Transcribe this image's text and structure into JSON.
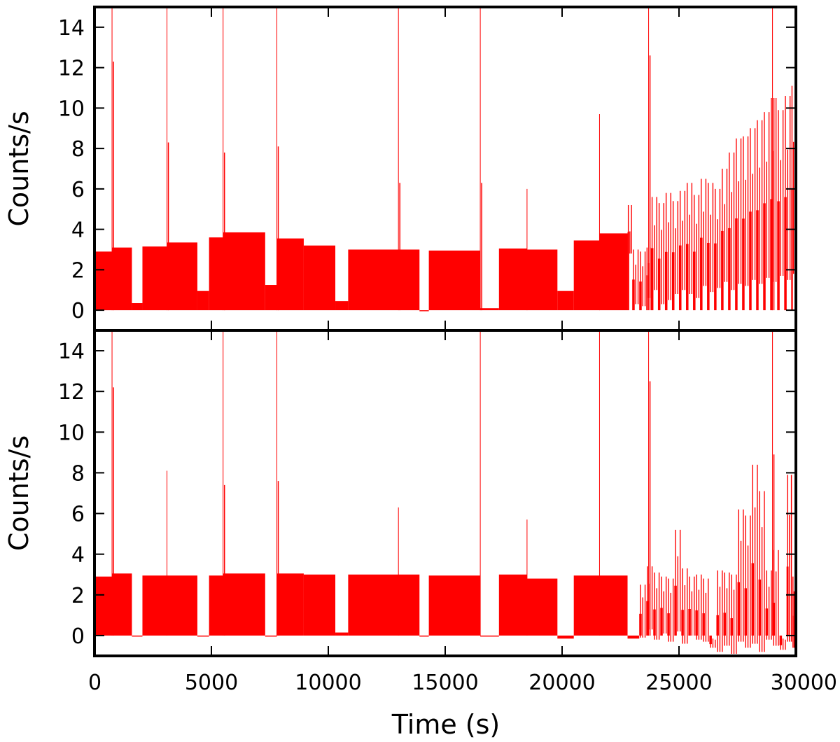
{
  "chart_data": [
    {
      "type": "bar",
      "panel": "top",
      "ylabel": "Counts/s",
      "xlabel": "",
      "xlim": [
        0,
        30000
      ],
      "ylim": [
        -1,
        15
      ],
      "yticks": [
        0,
        2,
        4,
        6,
        8,
        10,
        12,
        14
      ],
      "xticks": [
        0,
        5000,
        10000,
        15000,
        20000,
        25000,
        30000
      ],
      "color": "#ff0000",
      "segments": [
        [
          0,
          750,
          2.9
        ],
        [
          750,
          1600,
          3.1
        ],
        [
          1600,
          2050,
          0.35
        ],
        [
          2050,
          3100,
          3.15
        ],
        [
          3100,
          4400,
          3.35
        ],
        [
          4400,
          4900,
          0.95
        ],
        [
          4900,
          5500,
          3.6
        ],
        [
          5500,
          7300,
          3.85
        ],
        [
          7300,
          7800,
          1.25
        ],
        [
          7800,
          8950,
          3.55
        ],
        [
          8950,
          10300,
          3.2
        ],
        [
          10300,
          10850,
          0.45
        ],
        [
          10850,
          13900,
          3.0
        ],
        [
          13900,
          14300,
          0.0
        ],
        [
          14300,
          16500,
          2.95
        ],
        [
          16500,
          17300,
          0.1
        ],
        [
          17300,
          18500,
          3.05
        ],
        [
          18500,
          19800,
          3.0
        ],
        [
          19800,
          20500,
          0.95
        ],
        [
          20500,
          21600,
          3.45
        ],
        [
          21600,
          22800,
          3.8
        ]
      ],
      "spikes": [
        [
          750,
          15,
          12.3
        ],
        [
          3100,
          15,
          8.3
        ],
        [
          5500,
          15,
          7.8
        ],
        [
          7800,
          15,
          8.1
        ],
        [
          13000,
          15,
          6.3
        ],
        [
          16500,
          15,
          6.3
        ],
        [
          18500,
          6.0,
          0
        ],
        [
          21600,
          9.7,
          0
        ],
        [
          23700,
          15,
          12.6
        ],
        [
          29000,
          15,
          10.5
        ]
      ],
      "tail": [
        [
          22800,
          5.2,
          2.8
        ],
        [
          23000,
          3.0,
          0.3
        ],
        [
          23300,
          2.9,
          0.2
        ],
        [
          23600,
          3.1,
          0.6
        ],
        [
          23800,
          5.6,
          1.0
        ],
        [
          24100,
          5.3,
          0.3
        ],
        [
          24400,
          5.8,
          0.5
        ],
        [
          24700,
          5.4,
          0.8
        ],
        [
          25000,
          5.9,
          1.0
        ],
        [
          25300,
          6.3,
          0.8
        ],
        [
          25600,
          5.7,
          0.6
        ],
        [
          25900,
          6.5,
          1.2
        ],
        [
          26200,
          6.3,
          0.9
        ],
        [
          26500,
          6.0,
          1.1
        ],
        [
          26800,
          7.0,
          1.4
        ],
        [
          27100,
          7.8,
          1.0
        ],
        [
          27400,
          8.5,
          1.3
        ],
        [
          27700,
          8.6,
          1.2
        ],
        [
          28000,
          9.0,
          1.5
        ],
        [
          28300,
          9.4,
          1.3
        ],
        [
          28600,
          9.8,
          1.6
        ],
        [
          28900,
          10.5,
          1.4
        ],
        [
          29200,
          9.9,
          1.7
        ],
        [
          29500,
          10.6,
          1.5
        ],
        [
          29800,
          11.1,
          1.8
        ]
      ]
    },
    {
      "type": "bar",
      "panel": "bottom",
      "ylabel": "Counts/s",
      "xlabel": "Time (s)",
      "xlim": [
        0,
        30000
      ],
      "ylim": [
        -1,
        15
      ],
      "yticks": [
        0,
        2,
        4,
        6,
        8,
        10,
        12,
        14
      ],
      "xticks": [
        0,
        5000,
        10000,
        15000,
        20000,
        25000,
        30000
      ],
      "color": "#ff0000",
      "segments": [
        [
          0,
          750,
          2.9
        ],
        [
          750,
          1600,
          3.05
        ],
        [
          1600,
          2050,
          -0.05
        ],
        [
          2050,
          3100,
          2.95
        ],
        [
          3100,
          4400,
          2.95
        ],
        [
          4400,
          4900,
          0.0
        ],
        [
          4900,
          5500,
          2.95
        ],
        [
          5500,
          7300,
          3.05
        ],
        [
          7300,
          7800,
          0.0
        ],
        [
          7800,
          8950,
          3.05
        ],
        [
          8950,
          10300,
          3.0
        ],
        [
          10300,
          10850,
          0.15
        ],
        [
          10850,
          13900,
          3.0
        ],
        [
          13900,
          14300,
          0.0
        ],
        [
          14300,
          16500,
          2.95
        ],
        [
          16500,
          17300,
          -0.05
        ],
        [
          17300,
          18500,
          3.0
        ],
        [
          18500,
          19800,
          2.8
        ],
        [
          19800,
          20500,
          -0.15
        ],
        [
          20500,
          21600,
          2.95
        ],
        [
          21600,
          22800,
          2.95
        ],
        [
          22800,
          23300,
          -0.15
        ]
      ],
      "spikes": [
        [
          750,
          15,
          12.2
        ],
        [
          3100,
          8.1,
          0
        ],
        [
          5500,
          15,
          7.4
        ],
        [
          7800,
          15,
          7.6
        ],
        [
          13000,
          6.3,
          0
        ],
        [
          16500,
          15,
          0
        ],
        [
          18500,
          5.7,
          0
        ],
        [
          21600,
          15,
          0
        ],
        [
          23700,
          15,
          12.5
        ],
        [
          29000,
          15,
          8.9
        ]
      ],
      "tail": [
        [
          23300,
          2.5,
          -0.1
        ],
        [
          23600,
          3.4,
          0.3
        ],
        [
          23900,
          3.1,
          -0.2
        ],
        [
          24200,
          2.9,
          0.1
        ],
        [
          24500,
          2.8,
          -0.3
        ],
        [
          24800,
          5.2,
          0.2
        ],
        [
          25100,
          3.3,
          -0.4
        ],
        [
          25400,
          2.9,
          0.0
        ],
        [
          25700,
          3.0,
          -0.2
        ],
        [
          26000,
          2.8,
          -0.3
        ],
        [
          26300,
          -0.2,
          -0.6
        ],
        [
          26600,
          3.2,
          -0.8
        ],
        [
          26900,
          3.1,
          -0.5
        ],
        [
          27200,
          3.0,
          -0.9
        ],
        [
          27500,
          6.2,
          -0.3
        ],
        [
          27800,
          5.9,
          -0.6
        ],
        [
          28100,
          8.4,
          -0.4
        ],
        [
          28400,
          7.1,
          -0.8
        ],
        [
          28700,
          3.2,
          -0.2
        ],
        [
          29000,
          4.2,
          -0.5
        ],
        [
          29300,
          -0.2,
          -0.7
        ],
        [
          29600,
          7.9,
          -0.3
        ],
        [
          29850,
          2.9,
          -0.6
        ]
      ]
    }
  ]
}
